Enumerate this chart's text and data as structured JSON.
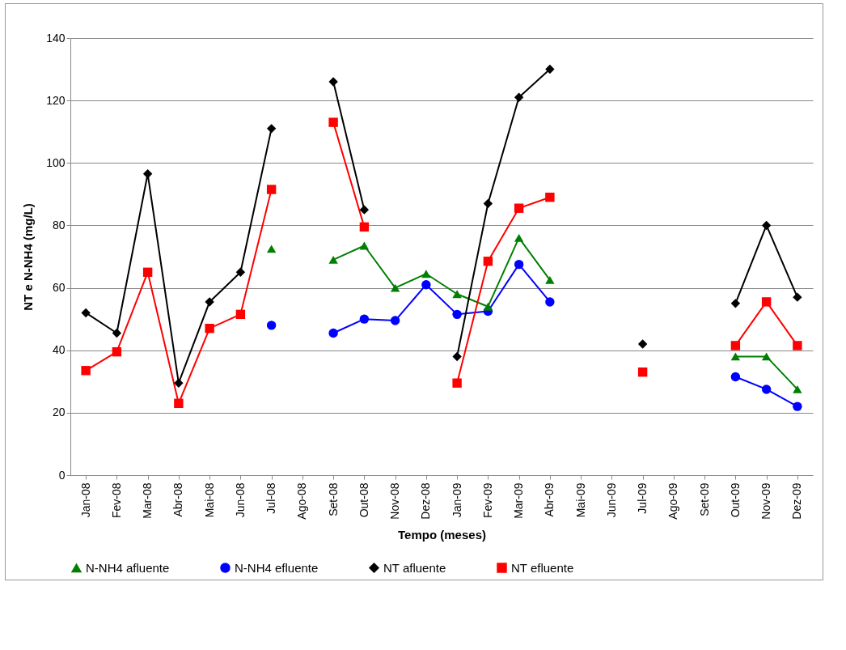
{
  "chart_data": {
    "type": "line",
    "xlabel": "Tempo (meses)",
    "ylabel": "NT e N-NH4 (mg/L)",
    "categories": [
      "Jan-08",
      "Fev-08",
      "Mar-08",
      "Abr-08",
      "Mai-08",
      "Jun-08",
      "Jul-08",
      "Ago-08",
      "Set-08",
      "Out-08",
      "Nov-08",
      "Dez-08",
      "Jan-09",
      "Fev-09",
      "Mar-09",
      "Abr-09",
      "Mai-09",
      "Jun-09",
      "Jul-09",
      "Ago-09",
      "Set-09",
      "Out-09",
      "Nov-09",
      "Dez-09"
    ],
    "series": [
      {
        "name": "N-NH4 afluente",
        "color": "#008000",
        "marker": "triangle",
        "values": [
          null,
          null,
          null,
          null,
          null,
          null,
          72.5,
          null,
          69,
          73.5,
          60,
          64.5,
          58,
          54,
          76,
          62.5,
          null,
          null,
          null,
          null,
          null,
          38,
          38,
          27.5
        ]
      },
      {
        "name": "N-NH4 efluente",
        "color": "#0000ff",
        "marker": "circle",
        "values": [
          null,
          null,
          null,
          null,
          null,
          null,
          48,
          null,
          45.5,
          50,
          49.5,
          61,
          51.5,
          52.5,
          67.5,
          55.5,
          null,
          null,
          null,
          null,
          null,
          31.5,
          27.5,
          22
        ]
      },
      {
        "name": "NT afluente",
        "color": "#000000",
        "marker": "diamond",
        "values": [
          52,
          45.5,
          96.5,
          29.5,
          55.5,
          65,
          111,
          null,
          126,
          85,
          null,
          null,
          38,
          87,
          121,
          130,
          null,
          null,
          42,
          null,
          null,
          55,
          80,
          57
        ]
      },
      {
        "name": "NT efluente",
        "color": "#ff0000",
        "marker": "square",
        "values": [
          33.5,
          39.5,
          65,
          23,
          47,
          51.5,
          91.5,
          null,
          113,
          79.5,
          null,
          null,
          29.5,
          68.5,
          85.5,
          89,
          null,
          null,
          33,
          null,
          null,
          41.5,
          55.5,
          41.5
        ]
      }
    ],
    "ylim": [
      0,
      140
    ],
    "yticks": [
      0,
      20,
      40,
      60,
      80,
      100,
      120,
      140
    ],
    "grid": "y",
    "legend": "bottom"
  }
}
